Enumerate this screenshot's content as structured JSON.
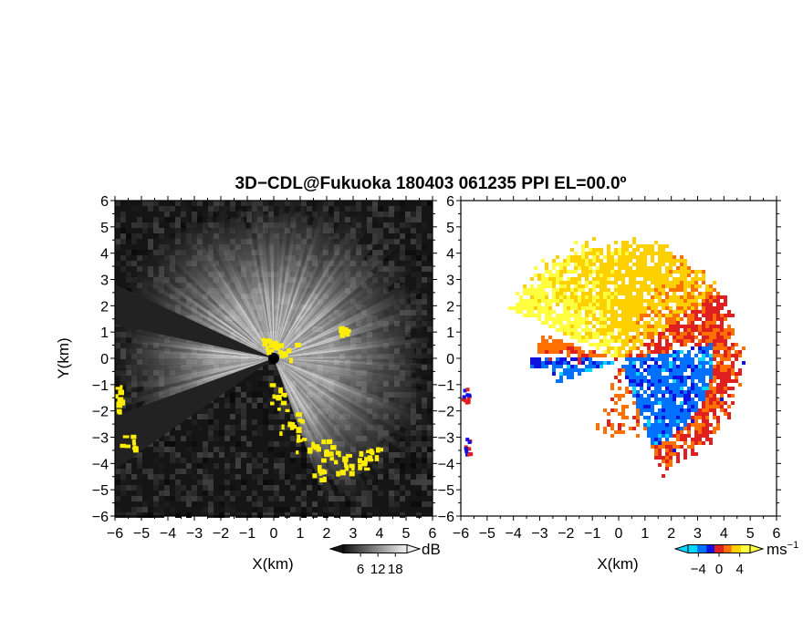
{
  "title": "3D−CDL@Fukuoka 180403 061235 PPI EL=00.0º",
  "chart_data": [
    {
      "type": "heatmap",
      "panel": "reflectivity",
      "xlabel": "X(km)",
      "ylabel": "Y(km)",
      "xlim": [
        -6,
        6
      ],
      "ylim": [
        -6,
        6
      ],
      "xticks": [
        "−6",
        "−5",
        "−4",
        "−3",
        "−2",
        "−1",
        "0",
        "1",
        "2",
        "3",
        "4",
        "5",
        "6"
      ],
      "yticks": [
        "6",
        "5",
        "4",
        "3",
        "2",
        "1",
        "0",
        "−1",
        "−2",
        "−3",
        "−4",
        "−5",
        "−6"
      ],
      "colorbar": {
        "unit": "dB",
        "ticks": [
          "6",
          "12",
          "18"
        ],
        "tick_values": [
          6,
          12,
          18
        ],
        "range": [
          0,
          22
        ],
        "colormap": "grayscale",
        "extend": "both"
      },
      "highlight_color": "#ffee00",
      "background_color": "#151515"
    },
    {
      "type": "heatmap",
      "panel": "doppler velocity",
      "xlabel": "X(km)",
      "xlim": [
        -6,
        6
      ],
      "ylim": [
        -6,
        6
      ],
      "xticks": [
        "−6",
        "−5",
        "−4",
        "−3",
        "−2",
        "−1",
        "0",
        "1",
        "2",
        "3",
        "4",
        "5",
        "6"
      ],
      "yticks": [
        "6",
        "5",
        "4",
        "3",
        "2",
        "1",
        "0",
        "−1",
        "−2",
        "−3",
        "−4",
        "−5",
        "−6"
      ],
      "colorbar": {
        "unit": "ms",
        "unit_exp": "−1",
        "ticks": [
          "−4",
          "0",
          "4"
        ],
        "tick_values": [
          -4,
          0,
          4
        ],
        "range": [
          -6,
          6
        ],
        "colormap": [
          "#00d8ff",
          "#0070ff",
          "#1010e0",
          "#e02020",
          "#ff7000",
          "#ffd000",
          "#ffff40"
        ],
        "extend": "both"
      }
    }
  ]
}
